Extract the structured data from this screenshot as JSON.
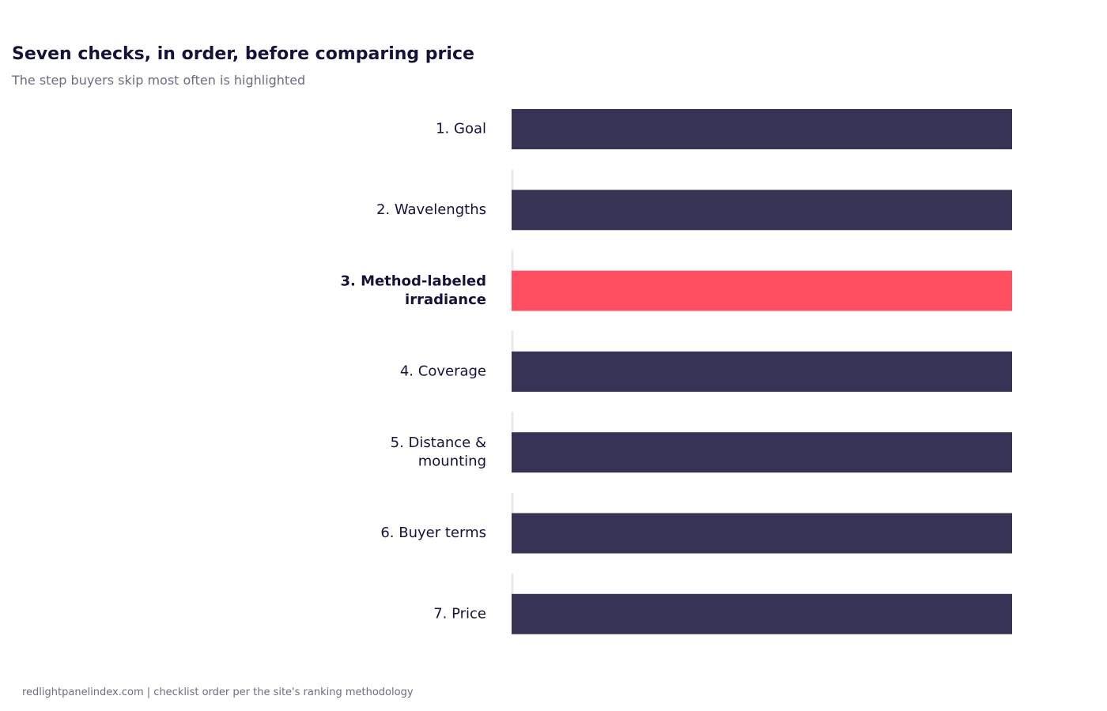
{
  "chart_data": {
    "type": "bar",
    "orientation": "horizontal",
    "title": "Seven checks, in order, before comparing price",
    "subtitle": "The step buyers skip most often is highlighted",
    "categories": [
      "1. Goal",
      "2. Wavelengths",
      "3. Method-labeled irradiance",
      "4. Coverage",
      "5. Distance & mounting",
      "6. Buyer terms",
      "7. Price"
    ],
    "category_lines": [
      [
        "1. Goal"
      ],
      [
        "2. Wavelengths"
      ],
      [
        "3. Method-labeled",
        "irradiance"
      ],
      [
        "4. Coverage"
      ],
      [
        "5. Distance &",
        "mounting"
      ],
      [
        "6. Buyer terms"
      ],
      [
        "7. Price"
      ]
    ],
    "values": [
      1,
      1,
      1,
      1,
      1,
      1,
      1
    ],
    "highlighted_index": 2,
    "xlim": [
      0,
      1
    ],
    "grid": false,
    "legend": "none",
    "colors": {
      "bar": "#363354",
      "highlight": "#ff4f61",
      "label": "#16133a",
      "separator": "#e9e9ee"
    }
  },
  "footer": {
    "note": "redlightpanelindex.com | checklist order per the site's ranking methodology"
  }
}
